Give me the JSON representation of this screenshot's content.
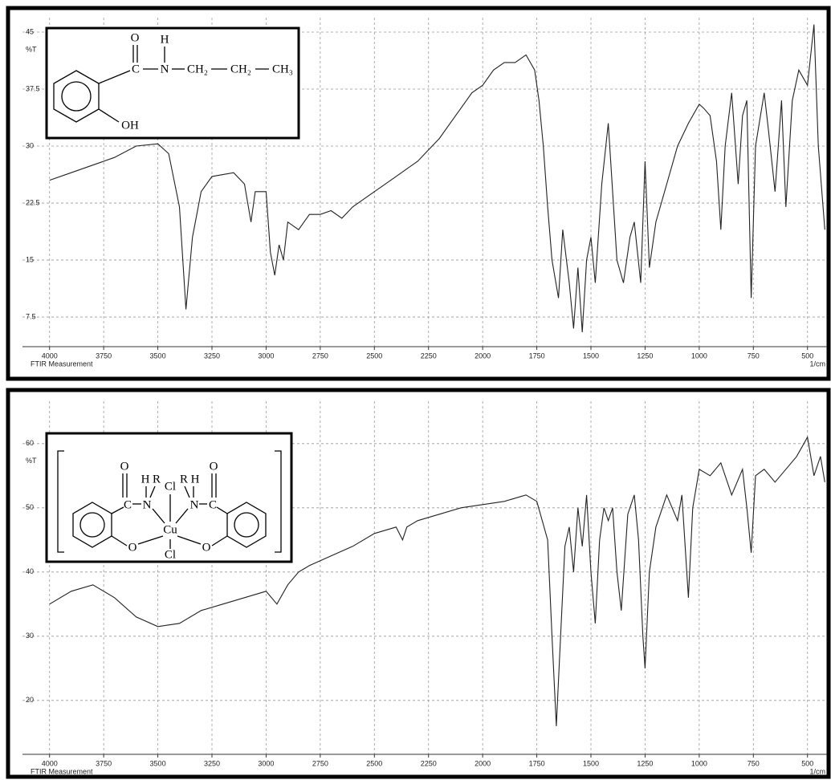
{
  "chart_data": [
    {
      "type": "line",
      "ylabel": "%T",
      "xlabel": "1/cm",
      "x_note": "FTIR Measurement",
      "color": "#222222",
      "grid": true,
      "xlim": [
        4125,
        410
      ],
      "ylim": [
        3.6,
        46.9
      ],
      "xticks": [
        4000,
        3750,
        3500,
        3250,
        3000,
        2750,
        2500,
        2250,
        2000,
        1750,
        1500,
        1250,
        1000,
        750,
        500
      ],
      "yticks": [
        45,
        37.5,
        30,
        22.5,
        15,
        7.5
      ],
      "x": [
        4000,
        3900,
        3800,
        3700,
        3600,
        3500,
        3450,
        3400,
        3370,
        3340,
        3300,
        3250,
        3150,
        3100,
        3070,
        3050,
        3000,
        2980,
        2960,
        2940,
        2920,
        2900,
        2850,
        2800,
        2750,
        2700,
        2650,
        2600,
        2550,
        2500,
        2450,
        2400,
        2350,
        2300,
        2250,
        2200,
        2150,
        2100,
        2050,
        2000,
        1950,
        1900,
        1850,
        1800,
        1760,
        1740,
        1720,
        1700,
        1680,
        1650,
        1630,
        1600,
        1580,
        1560,
        1540,
        1520,
        1500,
        1480,
        1450,
        1420,
        1400,
        1380,
        1350,
        1320,
        1300,
        1270,
        1250,
        1230,
        1200,
        1150,
        1100,
        1050,
        1000,
        980,
        950,
        920,
        900,
        880,
        850,
        820,
        800,
        780,
        760,
        740,
        700,
        680,
        650,
        620,
        600,
        570,
        540,
        500,
        470,
        450,
        420
      ],
      "values": [
        25.5,
        26.5,
        27.5,
        28.5,
        30,
        30.3,
        29,
        22,
        8.5,
        18,
        24,
        26,
        26.5,
        25,
        20,
        24,
        24,
        16,
        13,
        17,
        15,
        20,
        19,
        21,
        21,
        21.5,
        20.5,
        22,
        23,
        24,
        25,
        26,
        27,
        28,
        29.5,
        31,
        33,
        35,
        37,
        38,
        40,
        41,
        41,
        42,
        40,
        36,
        30,
        22,
        15,
        10,
        19,
        12,
        6,
        14,
        5.5,
        15,
        18,
        12,
        25,
        33,
        24,
        15,
        12,
        18,
        20,
        12,
        28,
        14,
        20,
        25,
        30,
        33,
        35.5,
        35,
        34,
        28,
        19,
        30,
        37,
        25,
        34,
        36,
        10,
        30,
        37,
        32,
        24,
        36,
        22,
        36,
        40,
        38,
        46,
        30,
        19
      ],
      "structure_labels": [
        "O",
        "H",
        "C",
        "N",
        "CH₂",
        "CH₂",
        "CH₃",
        "OH"
      ]
    },
    {
      "type": "line",
      "ylabel": "%T",
      "xlabel": "1/cm",
      "x_note": "FTIR Measurement",
      "color": "#222222",
      "grid": true,
      "xlim": [
        4125,
        410
      ],
      "ylim": [
        11.6,
        66.6
      ],
      "xticks": [
        4000,
        3750,
        3500,
        3250,
        3000,
        2750,
        2500,
        2250,
        2000,
        1750,
        1500,
        1250,
        1000,
        750,
        500
      ],
      "yticks": [
        60,
        50,
        40,
        30,
        20
      ],
      "x": [
        4000,
        3900,
        3800,
        3700,
        3600,
        3500,
        3400,
        3300,
        3200,
        3100,
        3000,
        2950,
        2900,
        2850,
        2800,
        2700,
        2600,
        2500,
        2450,
        2400,
        2370,
        2350,
        2300,
        2200,
        2100,
        2000,
        1900,
        1800,
        1750,
        1700,
        1680,
        1660,
        1640,
        1620,
        1600,
        1580,
        1560,
        1540,
        1520,
        1500,
        1480,
        1460,
        1440,
        1420,
        1400,
        1380,
        1360,
        1330,
        1300,
        1280,
        1260,
        1250,
        1230,
        1200,
        1150,
        1100,
        1080,
        1050,
        1030,
        1000,
        950,
        900,
        850,
        800,
        780,
        760,
        740,
        700,
        650,
        600,
        550,
        500,
        470,
        440,
        420
      ],
      "values": [
        35,
        37,
        38,
        36,
        33,
        31.5,
        32,
        34,
        35,
        36,
        37,
        35,
        38,
        40,
        41,
        42.5,
        44,
        46,
        46.5,
        47,
        45,
        47,
        48,
        49,
        50,
        50.5,
        51,
        52,
        51,
        45,
        30,
        16,
        30,
        44,
        47,
        40,
        50,
        44,
        52,
        40,
        32,
        45,
        50,
        48,
        50,
        40,
        34,
        49,
        52,
        45,
        30,
        25,
        40,
        47,
        52,
        48,
        52,
        36,
        50,
        56,
        55,
        57,
        52,
        56,
        50,
        43,
        55,
        56,
        54,
        56,
        58,
        61,
        55,
        58,
        54
      ],
      "structure_labels": [
        "O",
        "H",
        "R",
        "Cl",
        "R",
        "H",
        "O",
        "C",
        "N",
        "Cu",
        "N",
        "C",
        "O",
        "O",
        "Cl"
      ]
    }
  ]
}
